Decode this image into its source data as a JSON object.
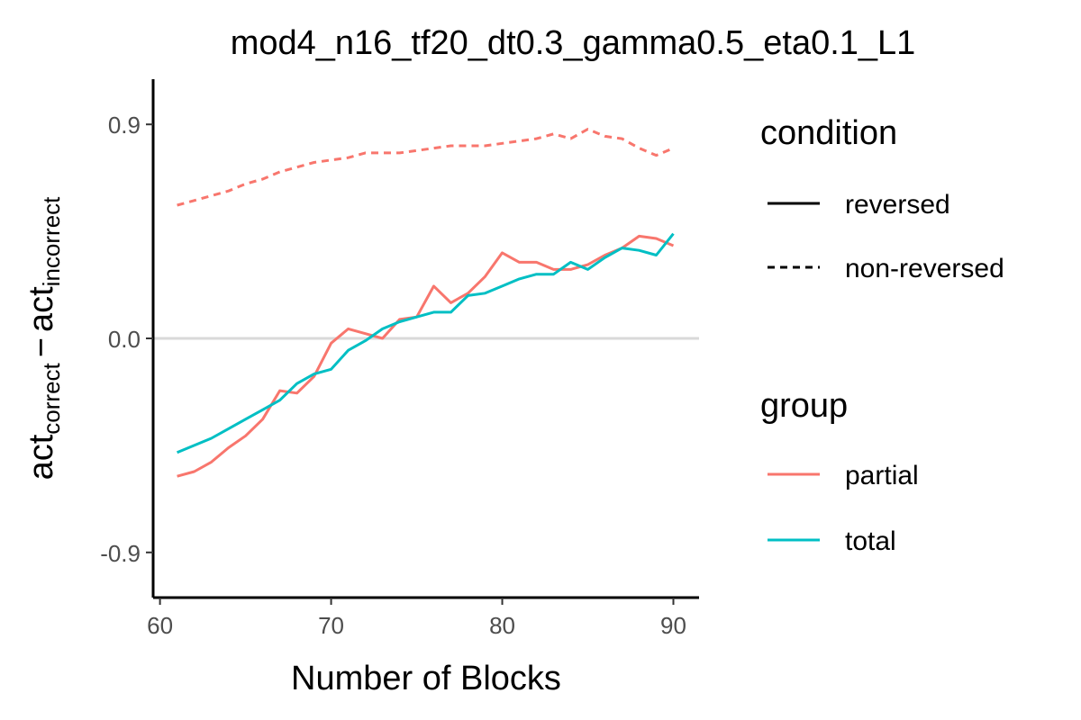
{
  "chart_data": {
    "type": "line",
    "title": "mod4_n16_tf20_dt0.3_gamma0.5_eta0.1_L1",
    "xlabel": "Number of Blocks",
    "ylabel": {
      "base1": "act",
      "sub1": "correct",
      "minus": "−",
      "base2": "act",
      "sub2": "incorrect"
    },
    "xlim": [
      59.6,
      91.5
    ],
    "ylim": [
      -1.09,
      1.09
    ],
    "x_ticks": [
      60,
      70,
      80,
      90
    ],
    "x_tick_labels": [
      "60",
      "70",
      "80",
      "90"
    ],
    "y_ticks": [
      -0.9,
      0.0,
      0.9
    ],
    "y_tick_labels": [
      "-0.9",
      "0.0",
      "0.9"
    ],
    "grid": false,
    "reference_line_y": 0.0,
    "legend_position": "right",
    "legends": [
      {
        "title": "condition",
        "entries": [
          {
            "label": "reversed",
            "linetype": "solid"
          },
          {
            "label": "non-reversed",
            "linetype": "dashed"
          }
        ]
      },
      {
        "title": "group",
        "entries": [
          {
            "label": "partial",
            "color": "#F8766D"
          },
          {
            "label": "total",
            "color": "#00BFC4"
          }
        ]
      }
    ],
    "x": [
      61,
      62,
      63,
      64,
      65,
      66,
      67,
      68,
      69,
      70,
      71,
      72,
      73,
      74,
      75,
      76,
      77,
      78,
      79,
      80,
      81,
      82,
      83,
      84,
      85,
      86,
      87,
      88,
      89,
      90
    ],
    "series": [
      {
        "name": "partial / reversed",
        "group": "partial",
        "condition": "reversed",
        "color": "#F8766D",
        "linetype": "solid",
        "values": [
          -0.58,
          -0.56,
          -0.52,
          -0.46,
          -0.41,
          -0.34,
          -0.22,
          -0.23,
          -0.16,
          -0.02,
          0.04,
          0.02,
          0.0,
          0.08,
          0.09,
          0.22,
          0.15,
          0.19,
          0.26,
          0.36,
          0.32,
          0.32,
          0.29,
          0.29,
          0.31,
          0.35,
          0.38,
          0.43,
          0.42,
          0.39
        ]
      },
      {
        "name": "total / reversed",
        "group": "total",
        "condition": "reversed",
        "color": "#00BFC4",
        "linetype": "solid",
        "values": [
          -0.48,
          -0.45,
          -0.42,
          -0.38,
          -0.34,
          -0.3,
          -0.26,
          -0.19,
          -0.15,
          -0.13,
          -0.05,
          -0.01,
          0.04,
          0.07,
          0.09,
          0.11,
          0.11,
          0.18,
          0.19,
          0.22,
          0.25,
          0.27,
          0.27,
          0.32,
          0.29,
          0.34,
          0.38,
          0.37,
          0.35,
          0.44
        ]
      },
      {
        "name": "partial / non-reversed",
        "group": "partial",
        "condition": "non-reversed",
        "color": "#F8766D",
        "linetype": "dashed",
        "values": [
          0.56,
          0.58,
          0.6,
          0.62,
          0.65,
          0.67,
          0.7,
          0.72,
          0.74,
          0.75,
          0.76,
          0.78,
          0.78,
          0.78,
          0.79,
          0.8,
          0.81,
          0.81,
          0.81,
          0.82,
          0.83,
          0.84,
          0.86,
          0.84,
          0.88,
          0.85,
          0.84,
          0.8,
          0.77,
          0.8
        ]
      }
    ]
  }
}
